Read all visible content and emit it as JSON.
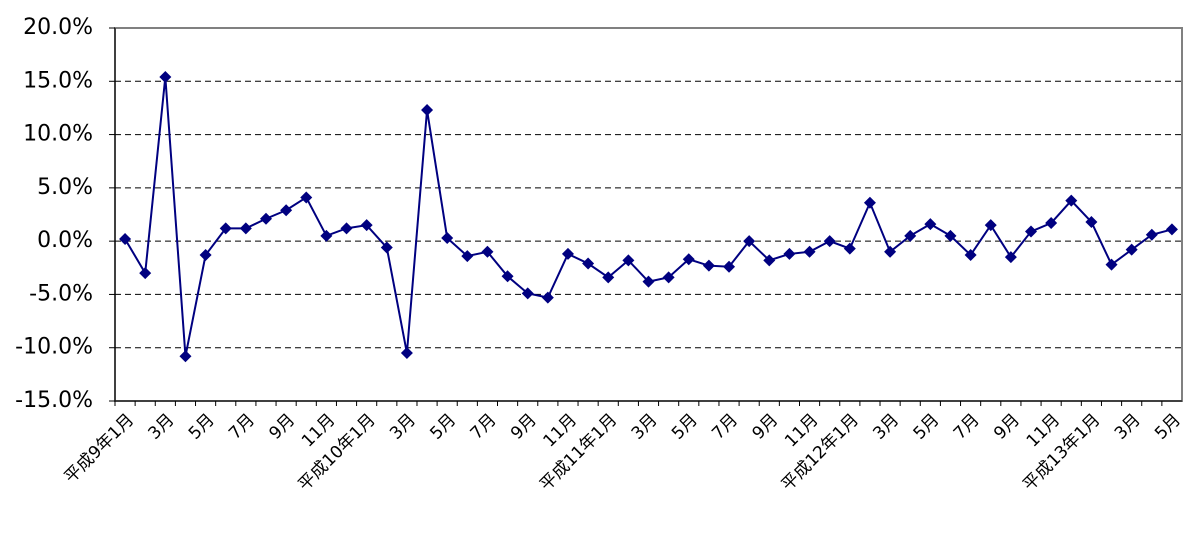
{
  "chart_data": {
    "type": "line",
    "categories": [
      "平成9年1月",
      null,
      "3月",
      null,
      "5月",
      null,
      "7月",
      null,
      "9月",
      null,
      "11月",
      null,
      "平成10年1月",
      null,
      "3月",
      null,
      "5月",
      null,
      "7月",
      null,
      "9月",
      null,
      "11月",
      null,
      "平成11年1月",
      null,
      "3月",
      null,
      "5月",
      null,
      "7月",
      null,
      "9月",
      null,
      "11月",
      null,
      "平成12年1月",
      null,
      "3月",
      null,
      "5月",
      null,
      "7月",
      null,
      "9月",
      null,
      "11月",
      null,
      "平成13年1月",
      null,
      "3月",
      null,
      "5月"
    ],
    "series": [
      {
        "color": "#000080",
        "values": [
          0.2,
          -3.0,
          15.4,
          -10.8,
          -1.3,
          1.2,
          1.2,
          2.1,
          2.9,
          4.1,
          0.5,
          1.2,
          1.5,
          -0.6,
          -10.5,
          12.3,
          0.3,
          -1.4,
          -1.0,
          -3.3,
          -4.9,
          -5.3,
          -1.2,
          -2.1,
          -3.4,
          -1.8,
          -3.8,
          -3.4,
          -1.7,
          -2.3,
          -2.4,
          0.0,
          -1.8,
          -1.2,
          -1.0,
          0.0,
          -0.7,
          3.6,
          -1.0,
          0.5,
          1.6,
          0.5,
          -1.3,
          1.5,
          -1.5,
          0.9,
          1.7,
          3.8,
          1.8,
          -2.2,
          -0.8,
          0.6,
          1.1
        ]
      }
    ],
    "ylim": [
      -15,
      20
    ],
    "yticks": [
      {
        "value": -15,
        "label": "-15.0%"
      },
      {
        "value": -10,
        "label": "-10.0%"
      },
      {
        "value": -5,
        "label": "-5.0%"
      },
      {
        "value": 0,
        "label": "0.0%"
      },
      {
        "value": 5,
        "label": "5.0%"
      },
      {
        "value": 10,
        "label": "10.0%"
      },
      {
        "value": 15,
        "label": "15.0%"
      },
      {
        "value": 20,
        "label": "20.0%"
      }
    ],
    "grid": true
  }
}
